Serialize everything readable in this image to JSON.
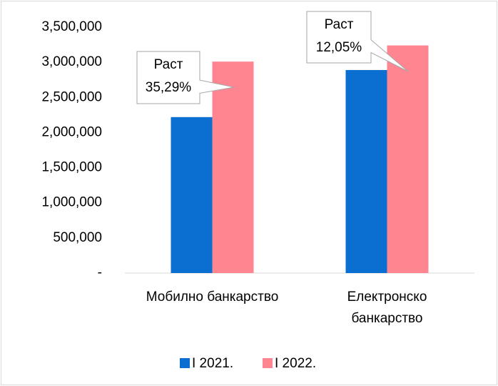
{
  "chart_data": {
    "type": "bar",
    "categories": [
      "Мобилно банкарство",
      "Електронско банкарство"
    ],
    "series": [
      {
        "name": "I 2021.",
        "color": "#0b6fd1",
        "values": [
          2220000,
          2890000
        ]
      },
      {
        "name": "I 2022.",
        "color": "#ff8591",
        "values": [
          3010000,
          3240000
        ]
      }
    ],
    "ylim": [
      0,
      3500000
    ],
    "yticks": [
      {
        "value": 0,
        "label": "-"
      },
      {
        "value": 500000,
        "label": "500,000"
      },
      {
        "value": 1000000,
        "label": "1,000,000"
      },
      {
        "value": 1500000,
        "label": "1,500,000"
      },
      {
        "value": 2000000,
        "label": "2,000,000"
      },
      {
        "value": 2500000,
        "label": "2,500,000"
      },
      {
        "value": 3000000,
        "label": "3,000,000"
      },
      {
        "value": 3500000,
        "label": "3,500,000"
      }
    ],
    "grid": false,
    "legend": "bottom",
    "annotations": [
      {
        "lines": [
          "Раст",
          "35,29%"
        ]
      },
      {
        "lines": [
          "Раст",
          "12,05%"
        ]
      }
    ]
  }
}
